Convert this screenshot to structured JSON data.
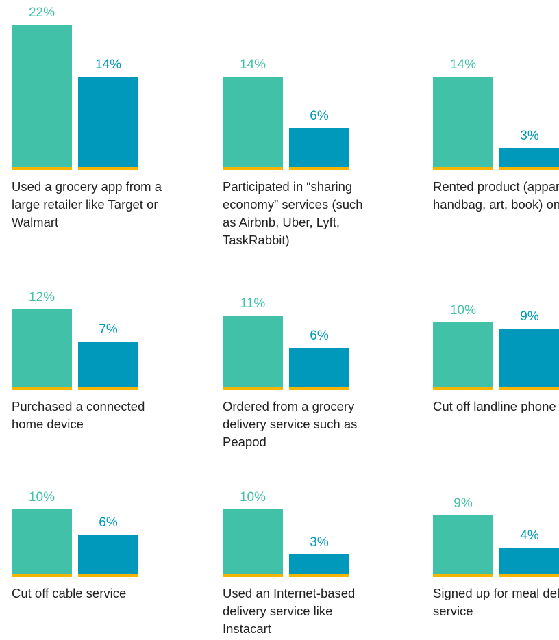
{
  "chart_data": [
    {
      "type": "bar",
      "title": "Used a grocery app from a large retailer like Target or Walmart",
      "values": [
        22,
        14
      ],
      "value_labels": [
        "22%",
        "14%"
      ],
      "colors": [
        "#41c1a8",
        "#0099bb"
      ]
    },
    {
      "type": "bar",
      "title": "Participated in “sharing economy” services (such as Airbnb, Uber, Lyft, TaskRabbit)",
      "values": [
        14,
        6
      ],
      "value_labels": [
        "14%",
        "6%"
      ],
      "colors": [
        "#41c1a8",
        "#0099bb"
      ]
    },
    {
      "type": "bar",
      "title": "Rented product (apparel, handbag, art, book) online",
      "values": [
        14,
        3
      ],
      "value_labels": [
        "14%",
        "3%"
      ],
      "colors": [
        "#41c1a8",
        "#0099bb"
      ]
    },
    {
      "type": "bar",
      "title": "Purchased a connected home device",
      "values": [
        12,
        7
      ],
      "value_labels": [
        "12%",
        "7%"
      ],
      "colors": [
        "#41c1a8",
        "#0099bb"
      ]
    },
    {
      "type": "bar",
      "title": "Ordered from a grocery delivery service such as Peapod",
      "values": [
        11,
        6
      ],
      "value_labels": [
        "11%",
        "6%"
      ],
      "colors": [
        "#41c1a8",
        "#0099bb"
      ]
    },
    {
      "type": "bar",
      "title": "Cut off landline phone line",
      "values": [
        10,
        9
      ],
      "value_labels": [
        "10%",
        "9%"
      ],
      "colors": [
        "#41c1a8",
        "#0099bb"
      ]
    },
    {
      "type": "bar",
      "title": "Cut off cable service",
      "values": [
        10,
        6
      ],
      "value_labels": [
        "10%",
        "6%"
      ],
      "colors": [
        "#41c1a8",
        "#0099bb"
      ]
    },
    {
      "type": "bar",
      "title": "Used an Internet-based delivery service like Instacart",
      "values": [
        10,
        3
      ],
      "value_labels": [
        "10%",
        "3%"
      ],
      "colors": [
        "#41c1a8",
        "#0099bb"
      ]
    },
    {
      "type": "bar",
      "title": "Signed up for meal delivery service",
      "values": [
        9,
        4
      ],
      "value_labels": [
        "9%",
        "4%"
      ],
      "colors": [
        "#41c1a8",
        "#0099bb"
      ]
    }
  ]
}
